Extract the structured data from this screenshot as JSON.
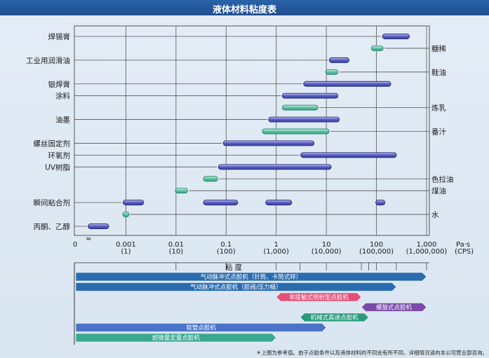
{
  "title": "液体材料粘度表",
  "footnote": "＊上图为参考值。由于点胶条件以及液体材料的不同会有所不同，详细情况请向本公司营业部咨询。",
  "colors": {
    "title_bg": "#2458a0",
    "blue_bar": "#5a62c8",
    "teal_bar": "#63c4a8",
    "grid": "#555555"
  },
  "chart_data": {
    "type": "range-bar",
    "xscale": "log",
    "xlim": [
      0.0001,
      1000
    ],
    "x_tick_values": [
      0.001,
      0.01,
      0.1,
      1,
      10,
      100,
      1000
    ],
    "x_tick_labels_pa": [
      "0.001",
      "0.01",
      "0.1",
      "1",
      "10",
      "100",
      "1,000"
    ],
    "x_tick_labels_cps": [
      "(1)",
      "(10)",
      "(100)",
      "(1,000)",
      "(10,000)",
      "(100,000)",
      "(1,000,000)"
    ],
    "x_zero_label": "0",
    "x_unit_pa": "Pa·s",
    "x_unit_cps": "(CPS)",
    "xlabel": "粘 度",
    "rows": [
      {
        "label": "焊锡膏",
        "side": "left",
        "ranges": [
          [
            150,
            400
          ]
        ],
        "color": "blue"
      },
      {
        "label": "糖稀",
        "side": "right",
        "ranges": [
          [
            90,
            120
          ]
        ],
        "color": "teal"
      },
      {
        "label": "工业用润滑油",
        "side": "left",
        "ranges": [
          [
            13,
            25
          ]
        ],
        "color": "blue"
      },
      {
        "label": "鞋油",
        "side": "right",
        "ranges": [
          [
            11,
            15
          ]
        ],
        "color": "teal"
      },
      {
        "label": "银焊膏",
        "side": "left",
        "ranges": [
          [
            4,
            170
          ]
        ],
        "color": "blue"
      },
      {
        "label": "涂料",
        "side": "left",
        "ranges": [
          [
            1.5,
            15
          ]
        ],
        "color": "blue"
      },
      {
        "label": "炼乳",
        "side": "right",
        "ranges": [
          [
            1.5,
            6
          ]
        ],
        "color": "teal"
      },
      {
        "label": "油墨",
        "side": "left",
        "ranges": [
          [
            0.8,
            16
          ]
        ],
        "color": "blue"
      },
      {
        "label": "番汁",
        "side": "right",
        "ranges": [
          [
            0.6,
            10
          ]
        ],
        "color": "teal"
      },
      {
        "label": "螺丝固定剂",
        "side": "left",
        "ranges": [
          [
            0.1,
            5
          ]
        ],
        "color": "blue"
      },
      {
        "label": "环氧剂",
        "side": "left",
        "ranges": [
          [
            3.5,
            220
          ]
        ],
        "color": "blue"
      },
      {
        "label": "UV树脂",
        "side": "left",
        "ranges": [
          [
            0.08,
            11
          ]
        ],
        "color": "blue"
      },
      {
        "label": "色拉油",
        "side": "right",
        "ranges": [
          [
            0.04,
            0.06
          ]
        ],
        "color": "teal"
      },
      {
        "label": "煤油",
        "side": "right",
        "ranges": [
          [
            0.011,
            0.015
          ]
        ],
        "color": "teal"
      },
      {
        "label": "瞬间粘合剂",
        "side": "left",
        "ranges": [
          [
            0.001,
            0.002
          ],
          [
            0.04,
            0.15
          ],
          [
            0.7,
            1.8
          ],
          [
            110,
            130
          ]
        ],
        "color": "blue"
      },
      {
        "label": "水",
        "side": "right",
        "ranges": [
          [
            0.001,
            0.001
          ]
        ],
        "color": "teal"
      },
      {
        "label": "丙酮、乙醇",
        "side": "left",
        "ranges": [
          [
            0.0002,
            0.0004
          ]
        ],
        "color": "blue"
      }
    ],
    "applicability": [
      {
        "label": "气动脉冲式点胶机（针筒、卡筒式样）",
        "from": 0.0001,
        "to": 1000,
        "color": "#2a6cb0"
      },
      {
        "label": "气动脉冲式点胶机（胶阀/压力桶）",
        "from": 0.0001,
        "to": 250,
        "color": "#2a6cb0"
      },
      {
        "label": "非接触式喷射型点胶机",
        "from": 1,
        "to": 50,
        "color": "#e2507a"
      },
      {
        "label": "螺旋式点胶机",
        "from": 50,
        "to": 1000,
        "color": "#7a4aa8"
      },
      {
        "label": "机械式高速点胶机",
        "from": 3,
        "to": 70,
        "color": "#2a9a7c"
      },
      {
        "label": "软管点胶机",
        "from": 0.0001,
        "to": 10,
        "color": "#4b74c8"
      },
      {
        "label": "超微量定量点胶机",
        "from": 0.0001,
        "to": 1,
        "color": "#3aa890"
      }
    ]
  }
}
